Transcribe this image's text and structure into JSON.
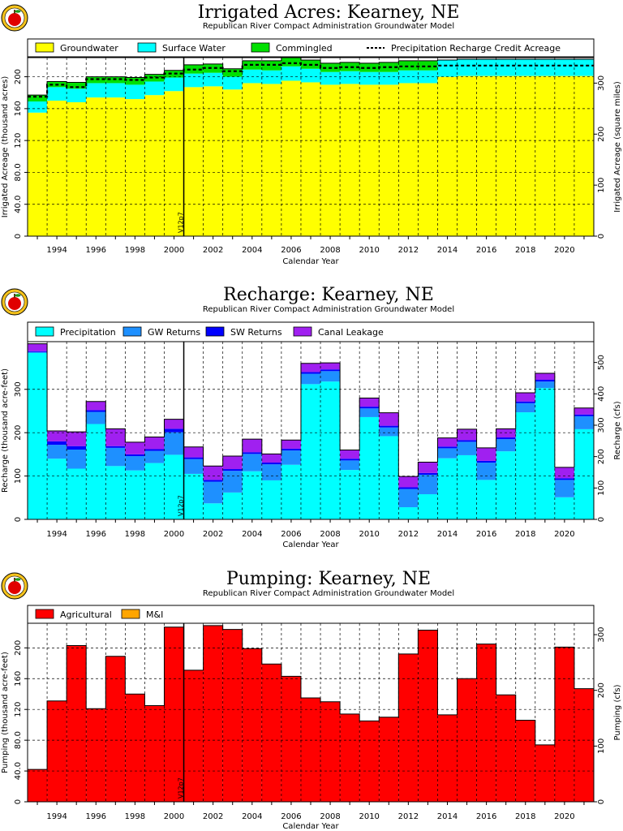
{
  "chart_data": [
    {
      "type": "bar",
      "stacked": true,
      "title": "Irrigated Acres: Kearney, NE",
      "subtitle": "Republican River Compact Administration Groundwater Model",
      "xlabel": "Calendar Year",
      "ylabel": "Irrigated Acreage (thousand acres)",
      "ylabel_right": "Irrigated Acreage (square miles)",
      "ylim": [
        0,
        224
      ],
      "yticks": [
        0,
        40,
        80,
        120,
        160,
        200
      ],
      "yticks_right": [
        0,
        100,
        200,
        300
      ],
      "yticks_right_at": [
        0,
        64,
        128,
        192
      ],
      "marker": {
        "x": 2000.5,
        "label": "V12p7"
      },
      "years": [
        1993,
        1994,
        1995,
        1996,
        1997,
        1998,
        1999,
        2000,
        2001,
        2002,
        2003,
        2004,
        2005,
        2006,
        2007,
        2008,
        2009,
        2010,
        2011,
        2012,
        2013,
        2014,
        2015,
        2016,
        2017,
        2018,
        2019,
        2020,
        2021
      ],
      "series": [
        {
          "name": "Groundwater",
          "color": "#ffff00",
          "values": [
            155,
            170,
            168,
            174,
            174,
            172,
            177,
            182,
            187,
            188,
            184,
            192,
            191,
            195,
            193,
            190,
            191,
            190,
            190,
            192,
            192,
            200,
            201,
            201,
            201,
            201,
            201,
            201,
            201
          ]
        },
        {
          "name": "Surface Water",
          "color": "#00ffff",
          "values": [
            14,
            17,
            17,
            18,
            18,
            18,
            17,
            17,
            17,
            17,
            16,
            17,
            17,
            18,
            17,
            16,
            16,
            16,
            16,
            16,
            16,
            21,
            21,
            21,
            21,
            21,
            21,
            21,
            21
          ]
        },
        {
          "name": "Commingled",
          "color": "#00e000",
          "values": [
            8,
            7,
            8,
            8,
            8,
            9,
            9,
            9,
            11,
            11,
            10,
            11,
            12,
            12,
            11,
            11,
            11,
            11,
            12,
            12,
            12,
            0,
            0,
            0,
            0,
            0,
            0,
            0,
            0
          ]
        }
      ],
      "lines": [
        {
          "name": "Precipitation Recharge Credit Acreage",
          "style": "dashed",
          "values": [
            175,
            190,
            187,
            197,
            197,
            196,
            199,
            204,
            209,
            211,
            207,
            215,
            215,
            217,
            215,
            211,
            212,
            211,
            212,
            213,
            213,
            214,
            214,
            214,
            214,
            214,
            214,
            214,
            214
          ]
        }
      ],
      "xticks": [
        1994,
        1996,
        1998,
        2000,
        2002,
        2004,
        2006,
        2008,
        2010,
        2012,
        2014,
        2016,
        2018,
        2020
      ]
    },
    {
      "type": "bar",
      "stacked": true,
      "title": "Recharge: Kearney, NE",
      "subtitle": "Republican River Compact Administration Groundwater Model",
      "xlabel": "Calendar Year",
      "ylabel": "Recharge (thousand acre-feet)",
      "ylabel_right": "Recharge (cfs)",
      "ylim": [
        0,
        410
      ],
      "yticks": [
        0,
        100,
        200,
        300
      ],
      "yticks_right": [
        0,
        100,
        200,
        300,
        400,
        500
      ],
      "yticks_right_at": [
        0,
        72.4,
        144.8,
        217.2,
        289.6,
        362
      ],
      "marker": {
        "x": 2000.5,
        "label": "V12p7"
      },
      "years": [
        1993,
        1994,
        1995,
        1996,
        1997,
        1998,
        1999,
        2000,
        2001,
        2002,
        2003,
        2004,
        2005,
        2006,
        2007,
        2008,
        2009,
        2010,
        2011,
        2012,
        2013,
        2014,
        2015,
        2016,
        2017,
        2018,
        2019,
        2020,
        2021
      ],
      "series": [
        {
          "name": "Precipitation",
          "color": "#00ffff",
          "values": [
            384,
            140,
            117,
            220,
            123,
            113,
            130,
            149,
            105,
            37,
            62,
            111,
            90,
            126,
            312,
            318,
            114,
            236,
            192,
            28,
            58,
            141,
            148,
            91,
            157,
            247,
            303,
            51,
            208
          ]
        },
        {
          "name": "GW Returns",
          "color": "#1e90ff",
          "values": [
            2,
            32,
            44,
            28,
            42,
            33,
            28,
            52,
            34,
            50,
            50,
            40,
            37,
            33,
            24,
            24,
            22,
            20,
            20,
            42,
            45,
            23,
            31,
            40,
            28,
            21,
            15,
            40,
            30
          ]
        },
        {
          "name": "SW Returns",
          "color": "#0000ff",
          "values": [
            2,
            8,
            8,
            4,
            4,
            4,
            4,
            8,
            4,
            4,
            4,
            4,
            4,
            4,
            4,
            4,
            4,
            4,
            4,
            4,
            4,
            4,
            4,
            4,
            4,
            4,
            4,
            4,
            4
          ]
        },
        {
          "name": "Canal Leakage",
          "color": "#a020f0",
          "values": [
            17,
            24,
            33,
            20,
            40,
            28,
            28,
            22,
            24,
            32,
            30,
            30,
            20,
            20,
            20,
            15,
            20,
            20,
            30,
            25,
            25,
            20,
            25,
            30,
            20,
            20,
            15,
            25,
            15
          ]
        }
      ],
      "xticks": [
        1994,
        1996,
        1998,
        2000,
        2002,
        2004,
        2006,
        2008,
        2010,
        2012,
        2014,
        2016,
        2018,
        2020
      ]
    },
    {
      "type": "bar",
      "stacked": true,
      "title": "Pumping: Kearney, NE",
      "subtitle": "Republican River Compact Administration Groundwater Model",
      "xlabel": "Calendar Year",
      "ylabel": "Pumping (thousand acre-feet)",
      "ylabel_right": "Pumping (cfs)",
      "ylim": [
        0,
        232
      ],
      "yticks": [
        0,
        40,
        80,
        120,
        160,
        200
      ],
      "yticks_right": [
        0,
        100,
        200,
        300
      ],
      "yticks_right_at": [
        0,
        72.4,
        144.8,
        217.2
      ],
      "marker": {
        "x": 2000.5,
        "label": "V12p7"
      },
      "years": [
        1993,
        1994,
        1995,
        1996,
        1997,
        1998,
        1999,
        2000,
        2001,
        2002,
        2003,
        2004,
        2005,
        2006,
        2007,
        2008,
        2009,
        2010,
        2011,
        2012,
        2013,
        2014,
        2015,
        2016,
        2017,
        2018,
        2019,
        2020,
        2021
      ],
      "series": [
        {
          "name": "Agricultural",
          "color": "#ff0000",
          "values": [
            42,
            131,
            203,
            121,
            189,
            140,
            125,
            227,
            171,
            229,
            224,
            199,
            179,
            163,
            135,
            130,
            114,
            105,
            110,
            192,
            223,
            113,
            160,
            205,
            139,
            106,
            74,
            201,
            147
          ]
        },
        {
          "name": "M&I",
          "color": "#ffa500",
          "values": [
            0,
            0,
            0,
            0,
            0,
            0,
            0,
            0,
            0,
            0,
            0,
            0,
            0,
            0,
            0,
            0,
            0,
            0,
            0,
            0,
            0,
            0,
            0,
            0,
            0,
            0,
            0,
            0,
            0
          ]
        }
      ],
      "xticks": [
        1994,
        1996,
        1998,
        2000,
        2002,
        2004,
        2006,
        2008,
        2010,
        2012,
        2014,
        2016,
        2018,
        2020
      ]
    }
  ]
}
